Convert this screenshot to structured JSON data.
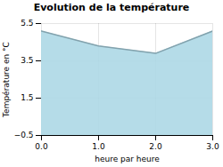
{
  "chart_data": {
    "type": "area",
    "title": "Evolution de la température",
    "xlabel": "heure par heure",
    "ylabel": "Température en °C",
    "x": [
      0,
      1,
      2,
      3
    ],
    "values": [
      5.1,
      4.3,
      3.9,
      5.1
    ],
    "color": "#add8e6",
    "xlim": [
      0,
      3
    ],
    "xticks": [
      0,
      1,
      2,
      3
    ],
    "ylim": [
      -0.5,
      5.5
    ],
    "yticks": [
      -0.5,
      1.5,
      3.5,
      5.5
    ],
    "grid": true
  }
}
